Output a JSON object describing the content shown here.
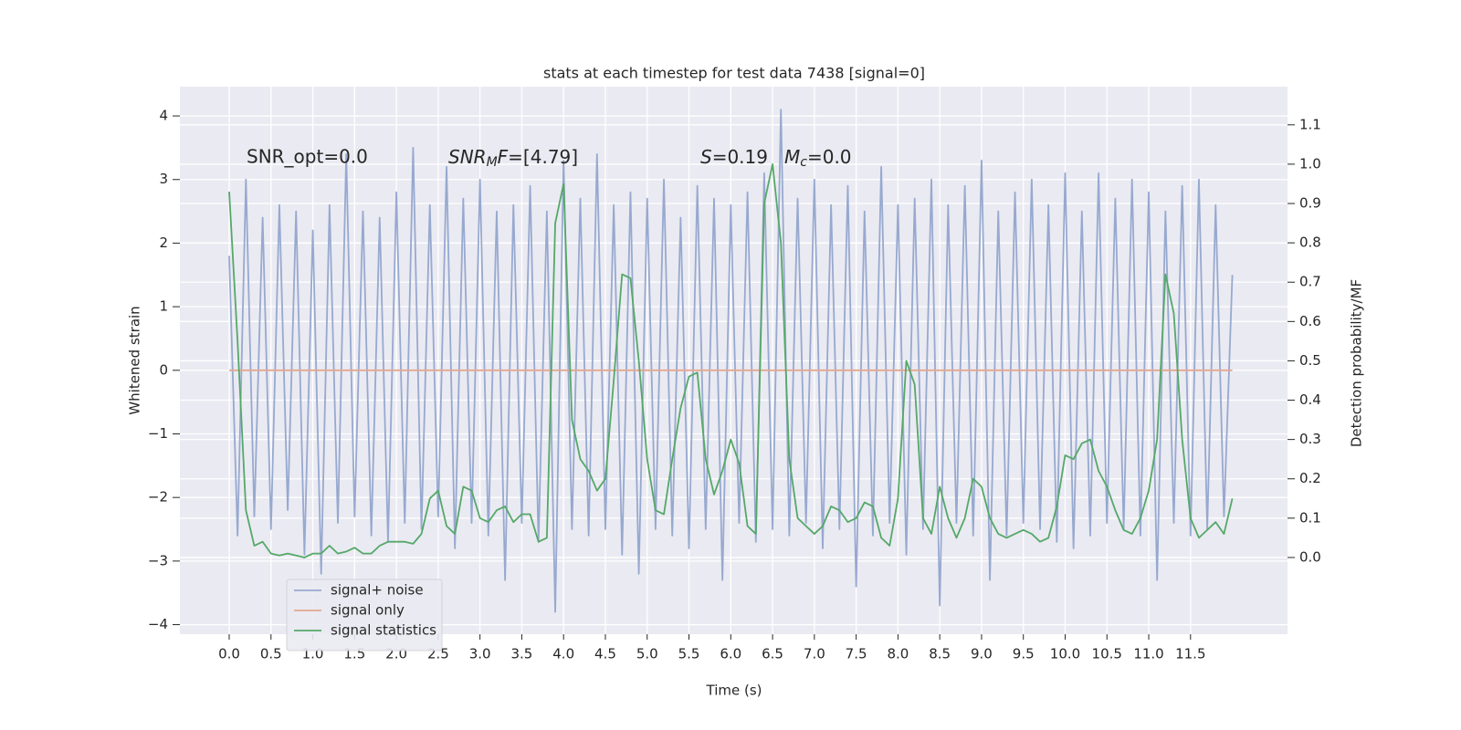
{
  "chart_data": {
    "type": "line",
    "title": "stats at each timestep for test data 7438 [signal=0]",
    "xlabel": "Time (s)",
    "ylabel": "Whitened strain",
    "y2label": "Detection probability/MF",
    "annotations": [
      "SNR_opt=0.0",
      [
        "SNR",
        "M",
        "F",
        "=[4.79]"
      ],
      [
        "S",
        "=0.19"
      ],
      [
        "M",
        "c",
        "=0.0"
      ]
    ],
    "grid": true,
    "legend": "lower left",
    "xlim": [
      -0.59,
      12.66
    ],
    "ylim": [
      -4.15,
      4.46
    ],
    "y2lim": [
      -0.195,
      1.197
    ],
    "xticks": [
      {
        "value": 0,
        "label": "0.0"
      },
      {
        "value": 0.5,
        "label": "0.5"
      },
      {
        "value": 1,
        "label": "1.0"
      },
      {
        "value": 1.5,
        "label": "1.5"
      },
      {
        "value": 2,
        "label": "2.0"
      },
      {
        "value": 2.5,
        "label": "2.5"
      },
      {
        "value": 3,
        "label": "3.0"
      },
      {
        "value": 3.5,
        "label": "3.5"
      },
      {
        "value": 4,
        "label": "4.0"
      },
      {
        "value": 4.5,
        "label": "4.5"
      },
      {
        "value": 5,
        "label": "5.0"
      },
      {
        "value": 5.5,
        "label": "5.5"
      },
      {
        "value": 6,
        "label": "6.0"
      },
      {
        "value": 6.5,
        "label": "6.5"
      },
      {
        "value": 7,
        "label": "7.0"
      },
      {
        "value": 7.5,
        "label": "7.5"
      },
      {
        "value": 8,
        "label": "8.0"
      },
      {
        "value": 8.5,
        "label": "8.5"
      },
      {
        "value": 9,
        "label": "9.0"
      },
      {
        "value": 9.5,
        "label": "9.5"
      },
      {
        "value": 10,
        "label": "10.0"
      },
      {
        "value": 10.5,
        "label": "10.5"
      },
      {
        "value": 11,
        "label": "11.0"
      },
      {
        "value": 11.5,
        "label": "11.5"
      }
    ],
    "yticks": [
      {
        "value": -4,
        "label": "−4"
      },
      {
        "value": -3,
        "label": "−3"
      },
      {
        "value": -2,
        "label": "−2"
      },
      {
        "value": -1,
        "label": "−1"
      },
      0,
      1,
      2,
      3,
      4
    ],
    "y2ticks": [
      {
        "value": 0,
        "label": "0.0"
      },
      {
        "value": 0.1,
        "label": "0.1"
      },
      {
        "value": 0.2,
        "label": "0.2"
      },
      {
        "value": 0.3,
        "label": "0.3"
      },
      {
        "value": 0.4,
        "label": "0.4"
      },
      {
        "value": 0.5,
        "label": "0.5"
      },
      {
        "value": 0.6,
        "label": "0.6"
      },
      {
        "value": 0.7,
        "label": "0.7"
      },
      {
        "value": 0.8,
        "label": "0.8"
      },
      {
        "value": 0.9,
        "label": "0.9"
      },
      {
        "value": 1,
        "label": "1.0"
      },
      {
        "value": 1.1,
        "label": "1.1"
      }
    ],
    "series": [
      {
        "name": "signal+ noise",
        "color": "#97a9cf",
        "x": [
          0,
          0.1,
          0.2,
          0.3,
          0.4,
          0.5,
          0.6,
          0.7,
          0.8,
          0.9,
          1,
          1.1,
          1.2,
          1.3,
          1.4,
          1.5,
          1.6,
          1.7,
          1.8,
          1.9,
          2,
          2.1,
          2.2,
          2.3,
          2.4,
          2.5,
          2.6,
          2.7,
          2.8,
          2.9,
          3,
          3.1,
          3.2,
          3.3,
          3.4,
          3.5,
          3.6,
          3.7,
          3.8,
          3.9,
          4,
          4.1,
          4.2,
          4.3,
          4.4,
          4.5,
          4.6,
          4.7,
          4.8,
          4.9,
          5,
          5.1,
          5.2,
          5.3,
          5.4,
          5.5,
          5.6,
          5.7,
          5.8,
          5.9,
          6,
          6.1,
          6.2,
          6.3,
          6.4,
          6.5,
          6.6,
          6.7,
          6.8,
          6.9,
          7,
          7.1,
          7.2,
          7.3,
          7.4,
          7.5,
          7.6,
          7.7,
          7.8,
          7.9,
          8,
          8.1,
          8.2,
          8.3,
          8.4,
          8.5,
          8.6,
          8.7,
          8.8,
          8.9,
          9,
          9.1,
          9.2,
          9.3,
          9.4,
          9.5,
          9.6,
          9.7,
          9.8,
          9.9,
          10,
          10.1,
          10.2,
          10.3,
          10.4,
          10.5,
          10.6,
          10.7,
          10.8,
          10.9,
          11,
          11.1,
          11.2,
          11.3,
          11.4,
          11.5,
          11.6,
          11.7,
          11.8,
          11.9,
          12
        ],
        "values": [
          1.8,
          -2.6,
          3.0,
          -2.3,
          2.4,
          -2.5,
          2.6,
          -2.2,
          2.5,
          -2.9,
          2.2,
          -3.2,
          2.6,
          -2.4,
          3.4,
          -2.3,
          2.5,
          -2.6,
          2.4,
          -2.7,
          2.8,
          -2.4,
          3.5,
          -2.5,
          2.6,
          -2.3,
          3.2,
          -2.8,
          2.7,
          -2.4,
          3.0,
          -2.6,
          2.5,
          -3.3,
          2.6,
          -2.4,
          2.9,
          -2.7,
          2.5,
          -3.8,
          3.3,
          -2.5,
          2.7,
          -2.6,
          3.4,
          -2.5,
          2.6,
          -2.9,
          2.8,
          -3.2,
          2.7,
          -2.5,
          3.0,
          -2.6,
          2.4,
          -2.8,
          2.9,
          -2.5,
          2.7,
          -3.3,
          2.6,
          -2.4,
          2.8,
          -2.7,
          3.1,
          -2.5,
          4.1,
          -2.6,
          2.7,
          -2.4,
          3.0,
          -2.8,
          2.6,
          -2.5,
          2.9,
          -3.4,
          2.5,
          -2.6,
          3.2,
          -2.4,
          2.6,
          -2.9,
          2.7,
          -2.5,
          3.0,
          -3.7,
          2.6,
          -2.4,
          2.9,
          -2.6,
          3.3,
          -3.3,
          2.5,
          -2.6,
          2.8,
          -2.4,
          3.0,
          -2.5,
          2.6,
          -2.7,
          3.1,
          -2.8,
          2.5,
          -2.6,
          3.1,
          -2.4,
          2.7,
          -2.5,
          3.0,
          -2.6,
          2.8,
          -3.3,
          2.5,
          -2.4,
          2.9,
          -2.6,
          3.0,
          -2.5,
          2.6,
          -2.3,
          1.5
        ]
      },
      {
        "name": "signal only",
        "color": "#e4a88f",
        "x": [
          0,
          12
        ],
        "values": [
          0,
          0
        ]
      },
      {
        "name": "signal statistics",
        "color": "#55a868",
        "axis": "y2",
        "x": [
          0,
          0.1,
          0.2,
          0.3,
          0.4,
          0.5,
          0.6,
          0.7,
          0.8,
          0.9,
          1,
          1.1,
          1.2,
          1.3,
          1.4,
          1.5,
          1.6,
          1.7,
          1.8,
          1.9,
          2,
          2.1,
          2.2,
          2.3,
          2.4,
          2.5,
          2.6,
          2.7,
          2.8,
          2.9,
          3,
          3.1,
          3.2,
          3.3,
          3.4,
          3.5,
          3.6,
          3.7,
          3.8,
          3.9,
          4,
          4.1,
          4.2,
          4.3,
          4.4,
          4.5,
          4.6,
          4.7,
          4.8,
          4.9,
          5,
          5.1,
          5.2,
          5.3,
          5.4,
          5.5,
          5.6,
          5.7,
          5.8,
          5.9,
          6,
          6.1,
          6.2,
          6.3,
          6.4,
          6.5,
          6.6,
          6.7,
          6.8,
          6.9,
          7,
          7.1,
          7.2,
          7.3,
          7.4,
          7.5,
          7.6,
          7.7,
          7.8,
          7.9,
          8,
          8.1,
          8.2,
          8.3,
          8.4,
          8.5,
          8.6,
          8.7,
          8.8,
          8.9,
          9,
          9.1,
          9.2,
          9.3,
          9.4,
          9.5,
          9.6,
          9.7,
          9.8,
          9.9,
          10,
          10.1,
          10.2,
          10.3,
          10.4,
          10.5,
          10.6,
          10.7,
          10.8,
          10.9,
          11,
          11.1,
          11.2,
          11.3,
          11.4,
          11.5,
          11.6,
          11.7,
          11.8,
          11.9,
          12
        ],
        "values": [
          0.93,
          0.55,
          0.12,
          0.03,
          0.04,
          0.01,
          0.005,
          0.01,
          0.005,
          0.0,
          0.01,
          0.01,
          0.03,
          0.01,
          0.015,
          0.025,
          0.01,
          0.01,
          0.03,
          0.04,
          0.04,
          0.04,
          0.035,
          0.06,
          0.15,
          0.17,
          0.08,
          0.06,
          0.18,
          0.17,
          0.1,
          0.09,
          0.12,
          0.13,
          0.09,
          0.11,
          0.11,
          0.04,
          0.05,
          0.85,
          0.95,
          0.35,
          0.25,
          0.22,
          0.17,
          0.2,
          0.45,
          0.72,
          0.71,
          0.5,
          0.25,
          0.12,
          0.11,
          0.25,
          0.38,
          0.46,
          0.47,
          0.25,
          0.16,
          0.22,
          0.3,
          0.24,
          0.08,
          0.06,
          0.9,
          1.0,
          0.8,
          0.25,
          0.1,
          0.08,
          0.06,
          0.08,
          0.13,
          0.12,
          0.09,
          0.1,
          0.14,
          0.13,
          0.05,
          0.03,
          0.15,
          0.5,
          0.44,
          0.1,
          0.06,
          0.18,
          0.1,
          0.05,
          0.1,
          0.2,
          0.18,
          0.1,
          0.06,
          0.05,
          0.06,
          0.07,
          0.06,
          0.04,
          0.05,
          0.13,
          0.26,
          0.25,
          0.29,
          0.3,
          0.22,
          0.18,
          0.12,
          0.07,
          0.06,
          0.1,
          0.17,
          0.3,
          0.72,
          0.62,
          0.3,
          0.1,
          0.05,
          0.07,
          0.09,
          0.06,
          0.15
        ]
      }
    ]
  }
}
